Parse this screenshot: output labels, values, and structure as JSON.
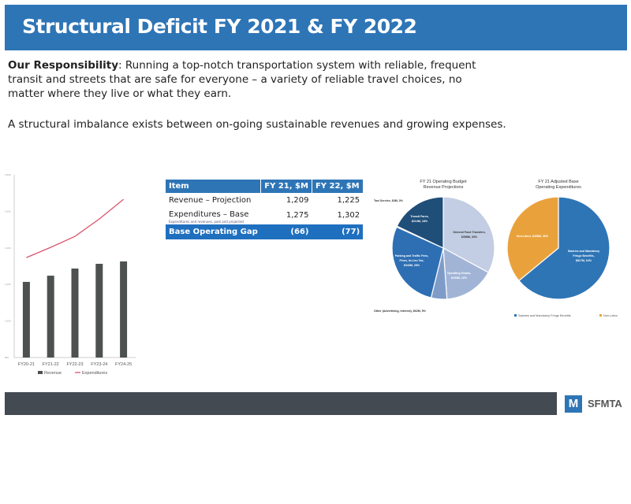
{
  "header": {
    "title": "Structural Deficit FY 2021 & FY 2022"
  },
  "intro": {
    "bold": "Our Responsibility",
    "text": ": Running a top-notch transportation system with reliable, frequent transit and streets that are safe for everyone – a variety of reliable travel choices, no matter where they live or what they earn."
  },
  "statement": "A structural imbalance exists between on-going sustainable revenues and growing expenses.",
  "table": {
    "headers": [
      "Item",
      "FY 21, $M",
      "FY 22, $M"
    ],
    "rows": [
      [
        "Revenue – Projection",
        "1,209",
        "1,225"
      ],
      [
        "Expenditures – Base",
        "1,275",
        "1,302"
      ]
    ],
    "caption": "Expenditures and revenues, past and projected",
    "total": [
      "Base Operating Gap",
      "(66)",
      "(77)"
    ]
  },
  "chart_data": [
    {
      "type": "bar",
      "title": "",
      "categories": [
        "FY20-21",
        "FY21-22",
        "FY22-23",
        "FY23-24",
        "FY24-25"
      ],
      "series": [
        {
          "name": "Revenue",
          "kind": "bar",
          "color": "#4d5150",
          "values": [
            1214,
            1248,
            1287,
            1313,
            1326
          ]
        },
        {
          "name": "Expenditures",
          "kind": "line",
          "color": "#d9546e",
          "values": [
            1347,
            1403,
            1463,
            1558,
            1666
          ]
        }
      ],
      "yticks": [
        "800",
        "1,000",
        "1,200",
        "1,400",
        "1,600",
        "1,800"
      ],
      "ylim": [
        800,
        1800
      ],
      "legend": "bottom"
    },
    {
      "type": "pie",
      "title": [
        "FY 21 Operating Budget",
        "Revenue Projections"
      ],
      "slices": [
        {
          "label": "General Fund Transfers, $398M, 33%",
          "value": 33,
          "color": "#c3cde3"
        },
        {
          "label": "Operating Grants, $190M, 16%",
          "value": 16,
          "color": "#a2b4d6"
        },
        {
          "label": "Other (Advertising, Interest), $62M, 5%",
          "value": 5,
          "color": "#7f9cc9"
        },
        {
          "label": "Parking and Traffic Fees, Fines, In-Lieu Tax, $343M, 28%",
          "value": 28,
          "color": "#2e6fb3"
        },
        {
          "label": "Taxi Service, $3M, 0%",
          "value": 0.3,
          "color": "#1f4e79"
        },
        {
          "label": "Transit Fares, $214M, 18%",
          "value": 18,
          "color": "#1f4e79"
        }
      ]
    },
    {
      "type": "pie",
      "title": [
        "FY 21 Adjusted Base",
        "Operating Expenditures"
      ],
      "slices": [
        {
          "label": "Salaries and Mandatory Fringe Benefits, $817M, 64%",
          "value": 64,
          "color": "#2e75b6"
        },
        {
          "label": "Non-Labor, $458M, 36%",
          "value": 36,
          "color": "#e9a23b"
        }
      ],
      "legend": [
        "Salaries and Mandatory Fringe Benefits",
        "Non-Labor"
      ]
    }
  ],
  "footer": {
    "logo": "SFMTA"
  }
}
